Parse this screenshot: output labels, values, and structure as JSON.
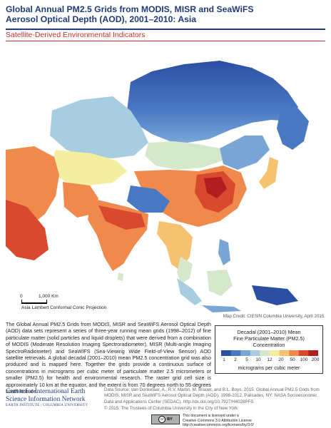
{
  "title": {
    "line1": "Global Annual PM2.5 Grids from MODIS, MISR and SeaWiFS",
    "line2": "Aerosol Optical Depth (AOD), 2001–2010: Asia"
  },
  "subtitle": "Satellite-Derived Environmental Indicators",
  "scale": {
    "zero": "0",
    "distance": "1,000 Km",
    "projection": "Asia Lambert Conformal Conic Projection"
  },
  "credit": "Map Credit: CIESIN Columbia University, April 2015.",
  "description": "The Global Annual PM2.5 Grids from MODIS, MISR and SeaWiFS Aerosol Optical Depth (AOD) data sets represent a series of three-year running mean grids (1998–2012) of fine particulate matter (solid particles and liquid droplets) that were derived from a combination of MODIS (Moderate Resolution Imaging Spectroradiometer), MISR (Multi-angle Imaging SpectroRadiometer) and SeaWIFS (Sea-Viewing Wide Field-of-View Sensor) AOD satellite retrievals. A global decadal (2001–2010) mean PM2.5 concentration grid was also produced and is mapped here. Together the grids provide a continuous surface of concentrations in micrograms per cubic meter of particulate matter 2.5 micrometers or smaller (PM2.5) for health and environmental research. The raster grid cell size is approximately 10 km at the equator, and the extent is from 70 degrees north to 55 degrees south latitude.",
  "legend": {
    "title_line1": "Decadal (2001–2010) Mean",
    "title_line2": "Fine Particulate Matter (PM2.5)",
    "title_line3": "Concentration",
    "ticks": [
      "1",
      "2",
      "5",
      "10",
      "12",
      "20",
      "50",
      "100",
      "200"
    ],
    "unit": "micrograms per cubic meter",
    "colors": [
      "#2c4fa3",
      "#4a79c4",
      "#7aa6d6",
      "#a8cde0",
      "#d5e8cc",
      "#f4eea0",
      "#f5c36f",
      "#ef8a4c",
      "#d9492f",
      "#b21d1f"
    ]
  },
  "colors": {
    "title_blue": "#1f3b7a",
    "accent_red": "#c4322b"
  },
  "org": {
    "line1": "Center for International Earth",
    "line2": "Science Information Network",
    "line3": "EARTH INSTITUTE | COLUMBIA UNIVERSITY"
  },
  "datasource": "Data Source: van Donkelaar, A., R.V. Martin, M. Brauer, and B.L. Boys. 2015. Global Annual PM2.5 Grids from MODIS, MISR and SeaWiFS Aerosol Optical Depth (AOD), 1998-2012. Palisades, NY: NASA Socioeconomic Data and Applications Center (SEDAC). http://dx.doi.org/10.7927/H4028PFS",
  "copyright": "© 2015. The Trustees of Columbia University in the City of New York",
  "license": {
    "badge": "BY",
    "line1": "This document is licensed under a",
    "line2": "Creative Commons 3.0 Attribution License",
    "line3": "http://creativecommons.org/licenses/by/3.0/"
  }
}
